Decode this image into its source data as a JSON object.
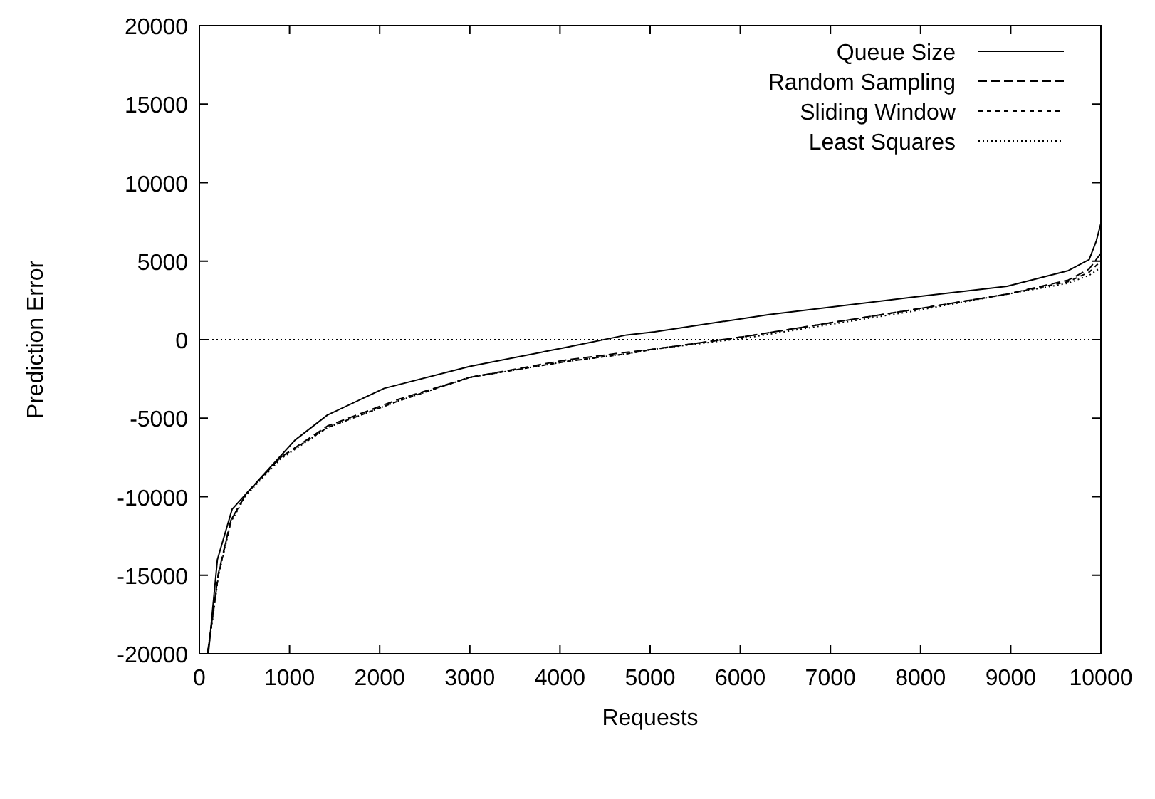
{
  "chart_data": {
    "type": "line",
    "xlabel": "Requests",
    "ylabel": "Prediction Error",
    "xlim": [
      0,
      10000
    ],
    "ylim": [
      -20000,
      20000
    ],
    "xticks": [
      0,
      1000,
      2000,
      3000,
      4000,
      5000,
      6000,
      7000,
      8000,
      9000,
      10000
    ],
    "yticks": [
      -20000,
      -15000,
      -10000,
      -5000,
      0,
      5000,
      10000,
      15000,
      20000
    ],
    "grid": false,
    "legend": "top right",
    "marker": "none",
    "ref_lines": [
      {
        "axis": "y",
        "value": 0,
        "color": "#000000",
        "line_style": "dotted"
      }
    ],
    "series": [
      {
        "name": "Queue Size",
        "color": "#000000",
        "line_style": "solid",
        "x": [
          100,
          200,
          363,
          680,
          1060,
          1420,
          2050,
          3000,
          4060,
          4740,
          5050,
          6320,
          7900,
          8960,
          9640,
          9870,
          9950,
          10000
        ],
        "values": [
          -20000,
          -14000,
          -10800,
          -8800,
          -6400,
          -4800,
          -3100,
          -1700,
          -500,
          300,
          500,
          1600,
          2700,
          3400,
          4400,
          5100,
          6300,
          7400
        ]
      },
      {
        "name": "Random Sampling",
        "color": "#000000",
        "line_style": "dashed",
        "x": [
          90,
          130,
          210,
          350,
          520,
          900,
          1420,
          2210,
          3000,
          4060,
          4740,
          5050,
          6050,
          7900,
          8960,
          9640,
          9870,
          10000
        ],
        "values": [
          -20000,
          -18300,
          -14900,
          -11500,
          -9800,
          -7500,
          -5500,
          -3800,
          -2400,
          -1300,
          -800,
          -600,
          200,
          1900,
          2900,
          3800,
          4500,
          5500
        ]
      },
      {
        "name": "Sliding Window",
        "color": "#000000",
        "line_style": "dashed",
        "x": [
          90,
          130,
          210,
          350,
          520,
          900,
          1420,
          2210,
          3000,
          4060,
          4740,
          5050,
          6050,
          7900,
          8960,
          9640,
          9870,
          10000
        ],
        "values": [
          -20000,
          -18400,
          -15000,
          -11500,
          -9800,
          -7500,
          -5600,
          -3900,
          -2400,
          -1400,
          -900,
          -600,
          200,
          1900,
          2900,
          3700,
          4300,
          5000
        ]
      },
      {
        "name": "Least Squares",
        "color": "#000000",
        "line_style": "dotted",
        "x": [
          90,
          130,
          210,
          350,
          520,
          900,
          1420,
          2210,
          3000,
          4060,
          4740,
          5050,
          6050,
          7900,
          8960,
          9640,
          9870,
          10000
        ],
        "values": [
          -20000,
          -18500,
          -15100,
          -11600,
          -9900,
          -7600,
          -5600,
          -3900,
          -2400,
          -1400,
          -900,
          -600,
          100,
          1800,
          2900,
          3600,
          4100,
          4600
        ]
      }
    ]
  }
}
